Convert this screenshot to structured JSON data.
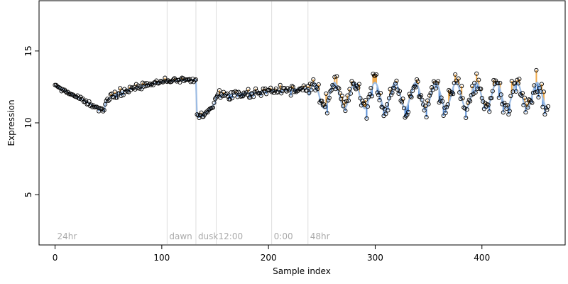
{
  "chart_data": {
    "type": "scatter",
    "title": "",
    "xlabel": "Sample index",
    "ylabel": "Expression",
    "xlim": [
      -15,
      478
    ],
    "ylim": [
      1.5,
      18.5
    ],
    "x_ticks": [
      0,
      100,
      200,
      300,
      400
    ],
    "y_ticks": [
      5,
      10,
      15
    ],
    "grid": false,
    "colors": {
      "points_outline": "#000000",
      "fit_line": "#9bbbe3",
      "above_fit": "#f0a94a",
      "below_fit": "#5a8fd6",
      "guide_lines": "#dddddd",
      "guide_labels": "#aaaaaa"
    },
    "guides": [
      {
        "x": 0,
        "label": "24hr",
        "line": false
      },
      {
        "x": 105,
        "label": "dawn",
        "line": true
      },
      {
        "x": 132,
        "label": "dusk",
        "line": true
      },
      {
        "x": 151,
        "label": "12:00",
        "line": true
      },
      {
        "x": 203,
        "label": "0:00",
        "line": true
      },
      {
        "x": 237,
        "label": "48hr",
        "line": true
      }
    ],
    "segments": [
      {
        "x_start": 0,
        "x_end": 46,
        "y_start": 12.6,
        "y_end": 10.8,
        "shape": "decline"
      },
      {
        "x_start": 47,
        "x_end": 104,
        "y_start": 11.3,
        "y_end": 12.9,
        "shape": "rise"
      },
      {
        "x_start": 105,
        "x_end": 132,
        "y_start": 12.9,
        "y_end": 13.0,
        "shape": "flat"
      },
      {
        "x_start": 133,
        "x_end": 150,
        "y_start": 10.5,
        "y_end": 11.4,
        "shape": "drop-recover"
      },
      {
        "x_start": 151,
        "x_end": 237,
        "y_start": 11.9,
        "y_end": 12.4,
        "shape": "flat-noisy"
      },
      {
        "x_start": 238,
        "x_end": 462,
        "y_mid": 11.9,
        "amplitude": 0.9,
        "period": 19,
        "shape": "oscillating"
      }
    ]
  }
}
